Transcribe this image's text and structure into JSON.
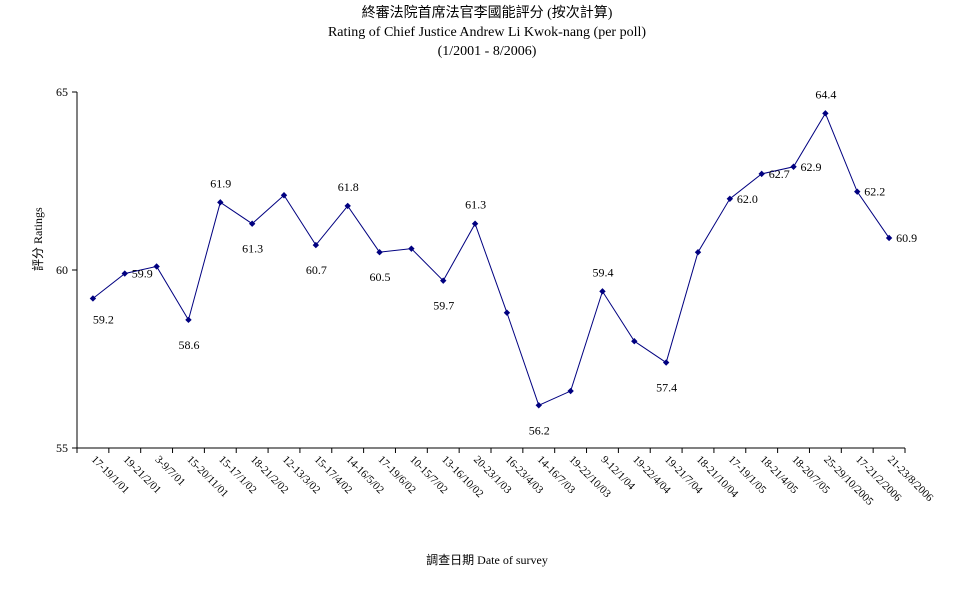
{
  "chart_data": {
    "type": "line",
    "title": "終審法院首席法官李國能評分 (按次計算)",
    "subtitle": "Rating of Chief Justice Andrew Li Kwok-nang  (per poll)",
    "subtitle2": "(1/2001 - 8/2006)",
    "xlabel": "調查日期 Date of survey",
    "ylabel": "評分 Ratings",
    "ylim": [
      55,
      65
    ],
    "yticks": [
      55,
      60,
      65
    ],
    "grid": false,
    "legend": "none",
    "color": "#000080",
    "categories": [
      "17-19/1/01",
      "19-21/2/01",
      "3-9/7/01",
      "15-20/11/01",
      "15-17/1/02",
      "18-21/2/02",
      "12-13/3/02",
      "15-17/4/02",
      "14-16/5/02",
      "17-19/6/02",
      "10-15/7/02",
      "13-16/10/02",
      "20-23/1/03",
      "16-23/4/03",
      "14-16/7/03",
      "19-22/10/03",
      "9-12/1/04",
      "19-22/4/04",
      "19-21/7/04",
      "18-21/10/04",
      "17-19/1/05",
      "18-21/4/05",
      "18-20/7/05",
      "25-29/10/2005",
      "17-21/2/2006",
      "21-23/8/2006"
    ],
    "values": [
      59.2,
      59.9,
      60.1,
      58.6,
      61.9,
      61.3,
      62.1,
      60.7,
      61.8,
      60.5,
      60.6,
      59.7,
      61.3,
      58.8,
      56.2,
      56.6,
      59.4,
      58.0,
      57.4,
      60.5,
      62.0,
      62.7,
      62.9,
      64.4,
      62.2,
      60.9
    ],
    "data_labels": [
      {
        "index": 0,
        "text": "59.2"
      },
      {
        "index": 1,
        "text": "59.9"
      },
      {
        "index": 3,
        "text": "58.6"
      },
      {
        "index": 4,
        "text": "61.9"
      },
      {
        "index": 5,
        "text": "61.3"
      },
      {
        "index": 7,
        "text": "60.7"
      },
      {
        "index": 8,
        "text": "61.8"
      },
      {
        "index": 9,
        "text": "60.5"
      },
      {
        "index": 11,
        "text": "59.7"
      },
      {
        "index": 12,
        "text": "61.3"
      },
      {
        "index": 14,
        "text": "56.2"
      },
      {
        "index": 16,
        "text": "59.4"
      },
      {
        "index": 18,
        "text": "57.4"
      },
      {
        "index": 20,
        "text": "62.0"
      },
      {
        "index": 21,
        "text": "62.7"
      },
      {
        "index": 22,
        "text": "62.9"
      },
      {
        "index": 23,
        "text": "64.4"
      },
      {
        "index": 24,
        "text": "62.2"
      },
      {
        "index": 25,
        "text": "60.9"
      }
    ]
  }
}
